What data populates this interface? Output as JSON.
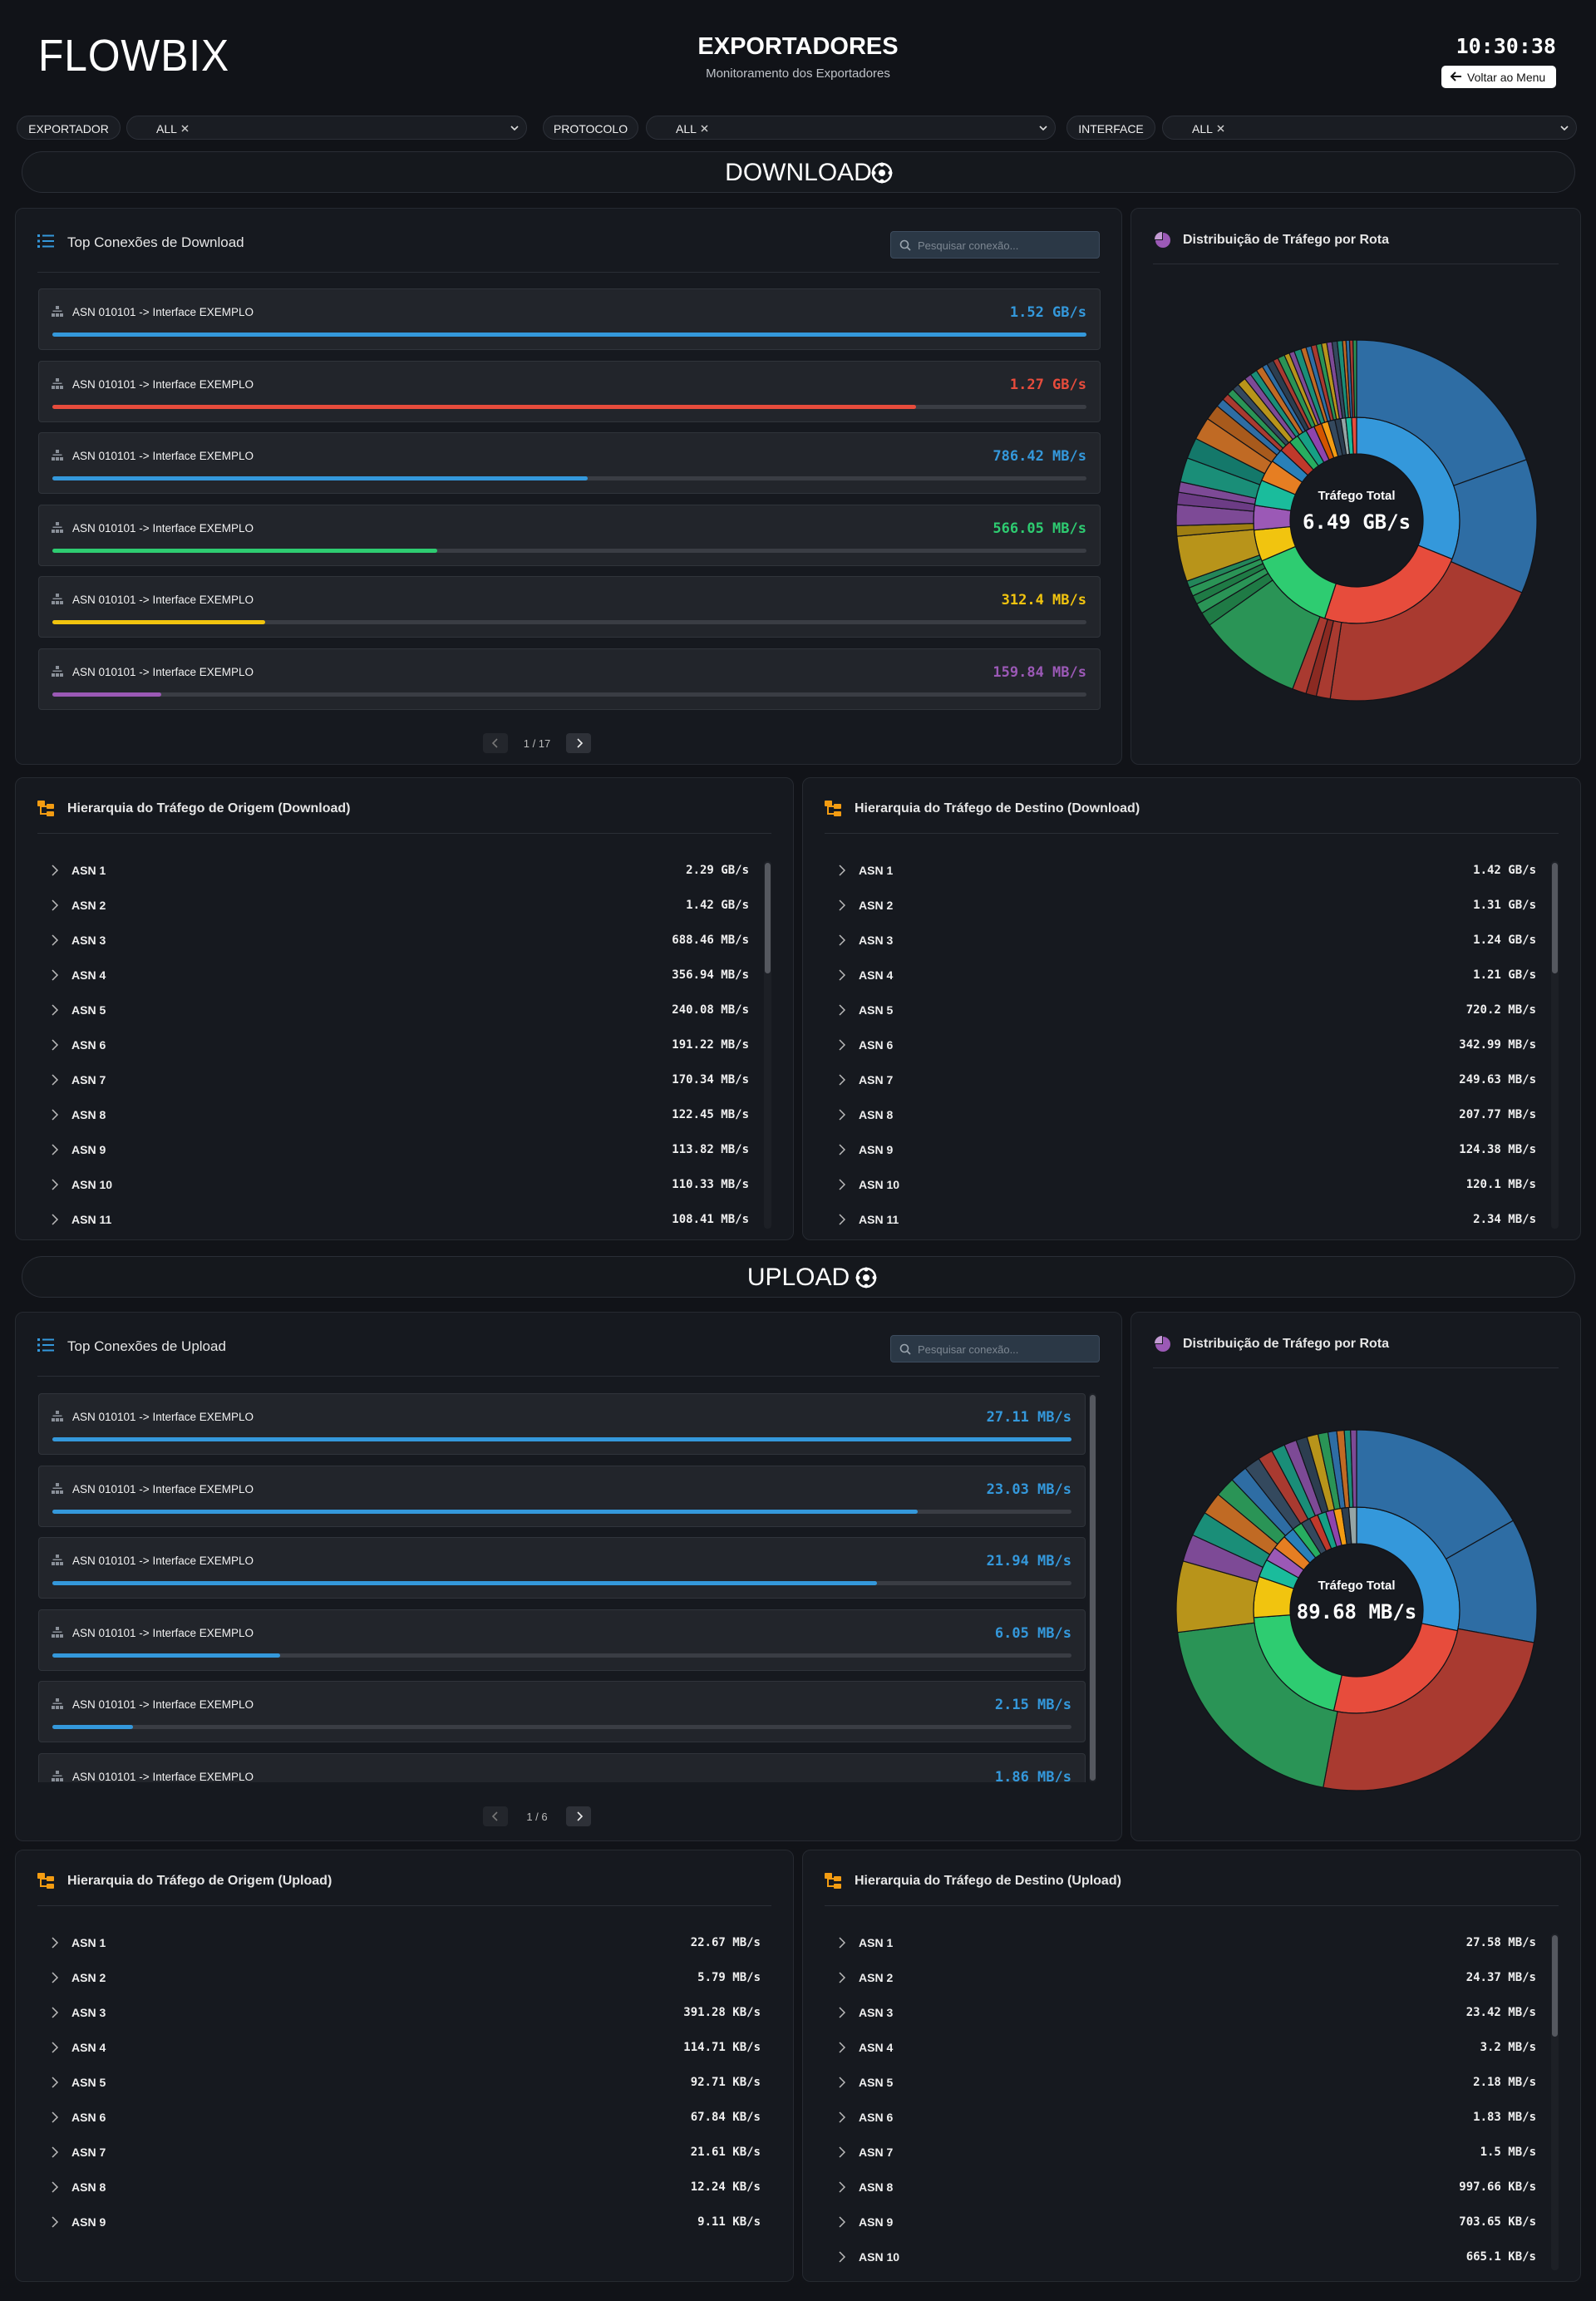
{
  "header": {
    "logo": "FLOWBIX",
    "title": "EXPORTADORES",
    "subtitle": "Monitoramento dos Exportadores",
    "clock": "10:30:38",
    "back_button": "Voltar ao Menu"
  },
  "filters": [
    {
      "label": "EXPORTADOR",
      "value": "ALL"
    },
    {
      "label": "PROTOCOLO",
      "value": "ALL"
    },
    {
      "label": "INTERFACE",
      "value": "ALL"
    }
  ],
  "sections": [
    {
      "title": "DOWNLOAD",
      "top": {
        "title": "Top Conexões de Download",
        "search_placeholder": "Pesquisar conexão...",
        "pagination": "1 / 17",
        "rows": [
          {
            "label": "ASN 010101 -> Interface EXEMPLO",
            "value": 1520,
            "value_label": "1.52 GB/s",
            "color": "#3498db"
          },
          {
            "label": "ASN 010101 -> Interface EXEMPLO",
            "value": 1270,
            "value_label": "1.27 GB/s",
            "color": "#e74c3c"
          },
          {
            "label": "ASN 010101 -> Interface EXEMPLO",
            "value": 786.42,
            "value_label": "786.42 MB/s",
            "color": "#3498db"
          },
          {
            "label": "ASN 010101 -> Interface EXEMPLO",
            "value": 566.05,
            "value_label": "566.05 MB/s",
            "color": "#2ecc71"
          },
          {
            "label": "ASN 010101 -> Interface EXEMPLO",
            "value": 312.4,
            "value_label": "312.4 MB/s",
            "color": "#f1c40f"
          },
          {
            "label": "ASN 010101 -> Interface EXEMPLO",
            "value": 159.84,
            "value_label": "159.84 MB/s",
            "color": "#9b59b6"
          }
        ]
      },
      "distribution": {
        "title": "Distribuição de Tráfego por Rota",
        "center_label": "Tráfego Total",
        "center_value": "6.49 GB/s",
        "inner": [
          {
            "value": 2.02,
            "color": "#3498db"
          },
          {
            "value": 1.55,
            "color": "#e74c3c"
          },
          {
            "value": 0.88,
            "color": "#2ecc71"
          },
          {
            "value": 0.32,
            "color": "#f1c40f"
          },
          {
            "value": 0.25,
            "color": "#9b59b6"
          },
          {
            "value": 0.26,
            "color": "#1abc9c"
          },
          {
            "value": 0.22,
            "color": "#e67e22"
          },
          {
            "value": 0.14,
            "color": "#2980b9"
          },
          {
            "value": 0.12,
            "color": "#c0392b"
          },
          {
            "value": 0.1,
            "color": "#27ae60"
          },
          {
            "value": 0.1,
            "color": "#16a085"
          },
          {
            "value": 0.09,
            "color": "#8e44ad"
          },
          {
            "value": 0.08,
            "color": "#d35400"
          },
          {
            "value": 0.07,
            "color": "#f39c12"
          },
          {
            "value": 0.07,
            "color": "#34495e"
          },
          {
            "value": 0.06,
            "color": "#2c3e50"
          },
          {
            "value": 0.05,
            "color": "#95a5a6"
          },
          {
            "value": 0.06,
            "color": "#1abc9c"
          },
          {
            "value": 0.05,
            "color": "#e74c3c"
          }
        ],
        "outer": [
          {
            "value": 1.25,
            "color": "#2e6da4"
          },
          {
            "value": 0.77,
            "color": "#2e6da4"
          },
          {
            "value": 1.33,
            "color": "#a93a30"
          },
          {
            "value": 0.08,
            "color": "#a93a30"
          },
          {
            "value": 0.06,
            "color": "#8b2a22"
          },
          {
            "value": 0.08,
            "color": "#a93a30"
          },
          {
            "value": 0.6,
            "color": "#2a9456"
          },
          {
            "value": 0.08,
            "color": "#1f7a45"
          },
          {
            "value": 0.06,
            "color": "#2a9456"
          },
          {
            "value": 0.05,
            "color": "#1f7a45"
          },
          {
            "value": 0.05,
            "color": "#2a9456"
          },
          {
            "value": 0.04,
            "color": "#23865a"
          },
          {
            "value": 0.26,
            "color": "#b8941a"
          },
          {
            "value": 0.06,
            "color": "#9e7e12"
          },
          {
            "value": 0.12,
            "color": "#7d4a96"
          },
          {
            "value": 0.07,
            "color": "#6c3c85"
          },
          {
            "value": 0.06,
            "color": "#7d4a96"
          },
          {
            "value": 0.14,
            "color": "#1a8e78"
          },
          {
            "value": 0.12,
            "color": "#14786a"
          },
          {
            "value": 0.13,
            "color": "#c06a24"
          },
          {
            "value": 0.09,
            "color": "#a85a1c"
          },
          {
            "value": 0.05,
            "color": "#2e6da4"
          },
          {
            "value": 0.04,
            "color": "#a93a30"
          },
          {
            "value": 0.04,
            "color": "#2a9456"
          },
          {
            "value": 0.04,
            "color": "#34495e"
          },
          {
            "value": 0.05,
            "color": "#b8941a"
          },
          {
            "value": 0.04,
            "color": "#7d4a96"
          },
          {
            "value": 0.04,
            "color": "#1a8e78"
          },
          {
            "value": 0.04,
            "color": "#c06a24"
          },
          {
            "value": 0.03,
            "color": "#2e6da4"
          },
          {
            "value": 0.04,
            "color": "#2c3e50"
          },
          {
            "value": 0.03,
            "color": "#a93a30"
          },
          {
            "value": 0.04,
            "color": "#2a9456"
          },
          {
            "value": 0.03,
            "color": "#b8941a"
          },
          {
            "value": 0.03,
            "color": "#7d4a96"
          },
          {
            "value": 0.04,
            "color": "#1a8e78"
          },
          {
            "value": 0.03,
            "color": "#c06a24"
          },
          {
            "value": 0.03,
            "color": "#2e6da4"
          },
          {
            "value": 0.03,
            "color": "#a93a30"
          },
          {
            "value": 0.03,
            "color": "#2a9456"
          },
          {
            "value": 0.03,
            "color": "#b8941a"
          },
          {
            "value": 0.03,
            "color": "#7d4a96"
          },
          {
            "value": 0.03,
            "color": "#34495e"
          },
          {
            "value": 0.03,
            "color": "#1a8e78"
          },
          {
            "value": 0.02,
            "color": "#c06a24"
          },
          {
            "value": 0.02,
            "color": "#2e6da4"
          },
          {
            "value": 0.02,
            "color": "#a93a30"
          },
          {
            "value": 0.02,
            "color": "#2a9456"
          }
        ]
      },
      "hierarchies": [
        {
          "title": "Hierarquia do Tráfego de Origem (Download)",
          "rows": [
            {
              "name": "ASN 1",
              "value": "2.29 GB/s"
            },
            {
              "name": "ASN 2",
              "value": "1.42 GB/s"
            },
            {
              "name": "ASN 3",
              "value": "688.46 MB/s"
            },
            {
              "name": "ASN 4",
              "value": "356.94 MB/s"
            },
            {
              "name": "ASN 5",
              "value": "240.08 MB/s"
            },
            {
              "name": "ASN 6",
              "value": "191.22 MB/s"
            },
            {
              "name": "ASN 7",
              "value": "170.34 MB/s"
            },
            {
              "name": "ASN 8",
              "value": "122.45 MB/s"
            },
            {
              "name": "ASN 9",
              "value": "113.82 MB/s"
            },
            {
              "name": "ASN 10",
              "value": "110.33 MB/s"
            },
            {
              "name": "ASN 11",
              "value": "108.41 MB/s"
            }
          ]
        },
        {
          "title": "Hierarquia do Tráfego de Destino (Download)",
          "rows": [
            {
              "name": "ASN 1",
              "value": "1.42 GB/s"
            },
            {
              "name": "ASN 2",
              "value": "1.31 GB/s"
            },
            {
              "name": "ASN 3",
              "value": "1.24 GB/s"
            },
            {
              "name": "ASN 4",
              "value": "1.21 GB/s"
            },
            {
              "name": "ASN 5",
              "value": "720.2 MB/s"
            },
            {
              "name": "ASN 6",
              "value": "342.99 MB/s"
            },
            {
              "name": "ASN 7",
              "value": "249.63 MB/s"
            },
            {
              "name": "ASN 8",
              "value": "207.77 MB/s"
            },
            {
              "name": "ASN 9",
              "value": "124.38 MB/s"
            },
            {
              "name": "ASN 10",
              "value": "120.1 MB/s"
            },
            {
              "name": "ASN 11",
              "value": "2.34 MB/s"
            }
          ]
        }
      ]
    },
    {
      "title": "UPLOAD",
      "top": {
        "title": "Top Conexões de Upload",
        "search_placeholder": "Pesquisar conexão...",
        "pagination": "1 / 6",
        "rows": [
          {
            "label": "ASN 010101 -> Interface EXEMPLO",
            "value": 27.11,
            "value_label": "27.11 MB/s",
            "color": "#3498db"
          },
          {
            "label": "ASN 010101 -> Interface EXEMPLO",
            "value": 23.03,
            "value_label": "23.03 MB/s",
            "color": "#3498db"
          },
          {
            "label": "ASN 010101 -> Interface EXEMPLO",
            "value": 21.94,
            "value_label": "21.94 MB/s",
            "color": "#3498db"
          },
          {
            "label": "ASN 010101 -> Interface EXEMPLO",
            "value": 6.05,
            "value_label": "6.05 MB/s",
            "color": "#3498db"
          },
          {
            "label": "ASN 010101 -> Interface EXEMPLO",
            "value": 2.15,
            "value_label": "2.15 MB/s",
            "color": "#3498db"
          },
          {
            "label": "ASN 010101 -> Interface EXEMPLO",
            "value": 1.86,
            "value_label": "1.86 MB/s",
            "color": "#3498db"
          }
        ]
      },
      "distribution": {
        "title": "Distribuição de Tráfego por Rota",
        "center_label": "Tráfego Total",
        "center_value": "89.68 MB/s",
        "inner": [
          {
            "value": 25,
            "color": "#3498db"
          },
          {
            "value": 22.5,
            "color": "#e74c3c"
          },
          {
            "value": 18,
            "color": "#2ecc71"
          },
          {
            "value": 5.7,
            "color": "#f1c40f"
          },
          {
            "value": 2.5,
            "color": "#1abc9c"
          },
          {
            "value": 2,
            "color": "#9b59b6"
          },
          {
            "value": 2,
            "color": "#e67e22"
          },
          {
            "value": 1.6,
            "color": "#2980b9"
          },
          {
            "value": 1.4,
            "color": "#27ae60"
          },
          {
            "value": 1.3,
            "color": "#34495e"
          },
          {
            "value": 1.2,
            "color": "#c0392b"
          },
          {
            "value": 1.2,
            "color": "#16a085"
          },
          {
            "value": 1.1,
            "color": "#8e44ad"
          },
          {
            "value": 1.1,
            "color": "#f39c12"
          },
          {
            "value": 1.0,
            "color": "#2c3e50"
          },
          {
            "value": 1.08,
            "color": "#95a5a6"
          }
        ],
        "outer": [
          {
            "value": 15,
            "color": "#2e6da4"
          },
          {
            "value": 10,
            "color": "#2e6da4"
          },
          {
            "value": 22.5,
            "color": "#a93a30"
          },
          {
            "value": 18,
            "color": "#2a9456"
          },
          {
            "value": 5.7,
            "color": "#b8941a"
          },
          {
            "value": 2.2,
            "color": "#7d4a96"
          },
          {
            "value": 2,
            "color": "#1a8e78"
          },
          {
            "value": 1.8,
            "color": "#c06a24"
          },
          {
            "value": 1.6,
            "color": "#2a9456"
          },
          {
            "value": 1.4,
            "color": "#2e6da4"
          },
          {
            "value": 1.3,
            "color": "#34495e"
          },
          {
            "value": 1.2,
            "color": "#a93a30"
          },
          {
            "value": 1.1,
            "color": "#1a8e78"
          },
          {
            "value": 1.0,
            "color": "#7d4a96"
          },
          {
            "value": 0.9,
            "color": "#2c3e50"
          },
          {
            "value": 0.9,
            "color": "#b8941a"
          },
          {
            "value": 0.8,
            "color": "#2a9456"
          },
          {
            "value": 0.7,
            "color": "#2e6da4"
          },
          {
            "value": 0.6,
            "color": "#c06a24"
          },
          {
            "value": 0.5,
            "color": "#1a8e78"
          },
          {
            "value": 0.48,
            "color": "#7d4a96"
          }
        ]
      },
      "hierarchies": [
        {
          "title": "Hierarquia do Tráfego de Origem (Upload)",
          "rows": [
            {
              "name": "ASN 1",
              "value": "22.67 MB/s"
            },
            {
              "name": "ASN 2",
              "value": "5.79 MB/s"
            },
            {
              "name": "ASN 3",
              "value": "391.28 KB/s"
            },
            {
              "name": "ASN 4",
              "value": "114.71 KB/s"
            },
            {
              "name": "ASN 5",
              "value": "92.71 KB/s"
            },
            {
              "name": "ASN 6",
              "value": "67.84 KB/s"
            },
            {
              "name": "ASN 7",
              "value": "21.61 KB/s"
            },
            {
              "name": "ASN 8",
              "value": "12.24 KB/s"
            },
            {
              "name": "ASN 9",
              "value": "9.11 KB/s"
            }
          ]
        },
        {
          "title": "Hierarquia do Tráfego de Destino (Upload)",
          "rows": [
            {
              "name": "ASN 1",
              "value": "27.58 MB/s"
            },
            {
              "name": "ASN 2",
              "value": "24.37 MB/s"
            },
            {
              "name": "ASN 3",
              "value": "23.42 MB/s"
            },
            {
              "name": "ASN 4",
              "value": "3.2 MB/s"
            },
            {
              "name": "ASN 5",
              "value": "2.18 MB/s"
            },
            {
              "name": "ASN 6",
              "value": "1.83 MB/s"
            },
            {
              "name": "ASN 7",
              "value": "1.5 MB/s"
            },
            {
              "name": "ASN 8",
              "value": "997.66 KB/s"
            },
            {
              "name": "ASN 9",
              "value": "703.65 KB/s"
            },
            {
              "name": "ASN 10",
              "value": "665.1 KB/s"
            }
          ]
        }
      ]
    }
  ]
}
